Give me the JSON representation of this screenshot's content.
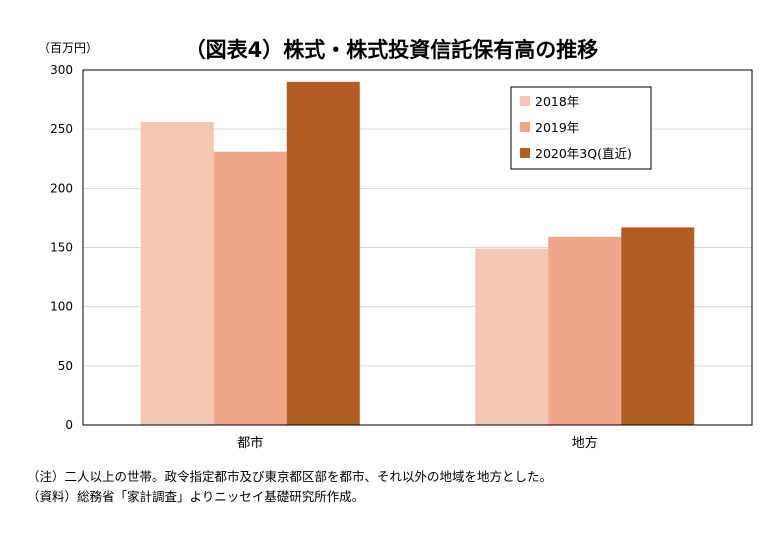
{
  "chart_data": {
    "type": "bar",
    "title": "（図表4）株式・株式投資信託保有高の推移",
    "unit_label": "（百万円）",
    "categories": [
      "都市",
      "地方"
    ],
    "series": [
      {
        "name": "2018年",
        "color": "#F4C7B3",
        "values": [
          256,
          149
        ]
      },
      {
        "name": "2019年",
        "color": "#EFA689",
        "values": [
          231,
          159
        ]
      },
      {
        "name": "2020年3Q(直近)",
        "color": "#B25D24",
        "values": [
          290,
          167
        ]
      }
    ],
    "ylim": [
      0,
      300
    ],
    "yticks": [
      0,
      50,
      100,
      150,
      200,
      250,
      300
    ],
    "grid": true,
    "legend_position": "top-right"
  },
  "notes": [
    "（注）二人以上の世帯。政令指定都市及び東京都区部を都市、それ以外の地域を地方とした。",
    "（資料）総務省「家計調査」よりニッセイ基礎研究所作成。"
  ]
}
